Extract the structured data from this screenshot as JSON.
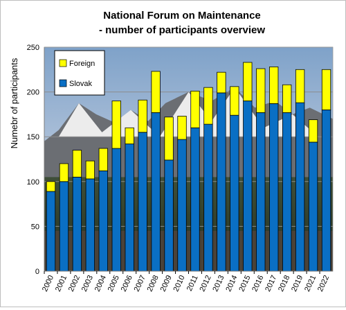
{
  "chart_data": {
    "type": "bar",
    "stacked": true,
    "title": [
      "National Forum on Maintenance",
      "- number of participants overview"
    ],
    "ylabel": "Numebr of participants",
    "xlabel": "",
    "ylim": [
      0,
      250
    ],
    "yticks": [
      0,
      50,
      100,
      150,
      200,
      250
    ],
    "grid": true,
    "legend_position": "top-left",
    "background": "mountain-landscape-photo",
    "categories": [
      "2000",
      "2001",
      "2002",
      "2003",
      "2004",
      "2005",
      "2006",
      "2007",
      "2008",
      "2009",
      "2010",
      "2011",
      "2012",
      "2013",
      "2014",
      "2015",
      "2016",
      "2017",
      "2018",
      "2019",
      "2021",
      "2022"
    ],
    "legend": [
      "Foreign",
      "Slovak"
    ],
    "series": [
      {
        "name": "Slovak",
        "color": "#0a6fc4",
        "values": [
          89,
          100,
          105,
          103,
          112,
          137,
          142,
          155,
          177,
          124,
          147,
          160,
          164,
          199,
          174,
          190,
          177,
          187,
          177,
          188,
          144,
          180
        ]
      },
      {
        "name": "Foreign",
        "color": "#ffff00",
        "values": [
          11,
          20,
          30,
          20,
          25,
          53,
          18,
          36,
          46,
          48,
          26,
          41,
          41,
          23,
          32,
          43,
          49,
          41,
          31,
          37,
          25,
          45
        ]
      }
    ]
  }
}
